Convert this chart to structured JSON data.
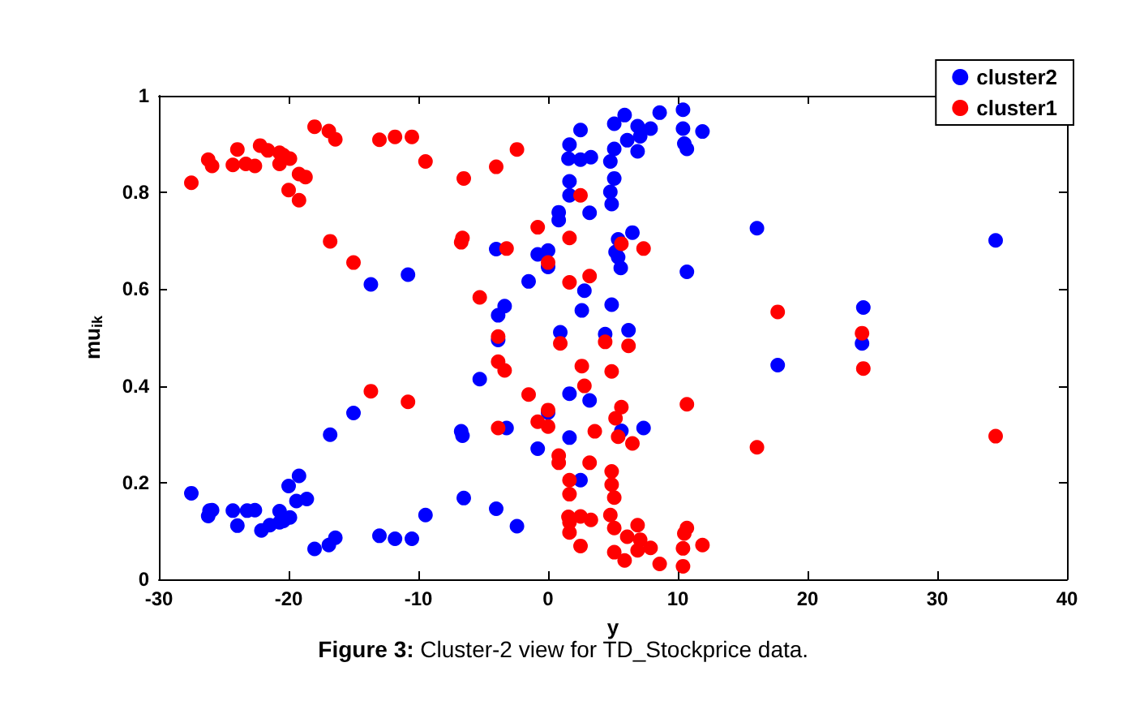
{
  "chart_data": {
    "type": "scatter",
    "xlabel": "y",
    "ylabel": "mu$_{ik}$",
    "annotations": [
      "Figure 3: Cluster-2 view for TD_Stockprice data."
    ],
    "xlim": [
      -30,
      40
    ],
    "xticks": [
      -30,
      -20,
      -10,
      0,
      10,
      20,
      30,
      40
    ],
    "ylim": [
      0,
      1
    ],
    "yticks": [
      0,
      0.2,
      0.4,
      0.6,
      0.8,
      1
    ],
    "grid": false,
    "legend": "top right",
    "marker": "circle",
    "series": [
      {
        "name": "cluster2",
        "color": "#0000ff",
        "x": [
          -27.5,
          -26.1,
          -26.2,
          -25.9,
          -24.3,
          -23.95,
          -23.2,
          -22.6,
          -22.1,
          -21.45,
          -20.7,
          -20.4,
          -19.9,
          -20.7,
          -20.0,
          -19.2,
          -19.4,
          -18.6,
          -18.0,
          -16.9,
          -16.4,
          -13.0,
          -11.8,
          -10.5,
          -9.45,
          -6.5,
          -16.8,
          -15.0,
          -6.7,
          -6.6,
          -13.66,
          -10.8,
          -5.27,
          -4.0,
          -2.4,
          -4.0,
          -3.85,
          -3.85,
          -3.35,
          -1.5,
          -0.8,
          0.0,
          0.0,
          -3.2,
          -0.8,
          0.0,
          1.65,
          3.2,
          1.65,
          5.65,
          7.36,
          2.5,
          0.94,
          4.4,
          6.2,
          2.6,
          4.9,
          2.8,
          0.82,
          0.82,
          3.2,
          1.65,
          1.65,
          4.8,
          5.1,
          4.9,
          1.57,
          1.65,
          2.5,
          3.3,
          2.5,
          4.8,
          5.1,
          6.1,
          6.9,
          7.1,
          6.9,
          7.9,
          5.1,
          5.9,
          8.6,
          10.4,
          10.4,
          10.5,
          10.7,
          11.9,
          10.7,
          5.4,
          5.2,
          5.6,
          5.4,
          6.5,
          16.1,
          17.7,
          24.3,
          24.2,
          34.5
        ],
        "values": [
          0.178,
          0.142,
          0.131,
          0.143,
          0.142,
          0.111,
          0.142,
          0.143,
          0.101,
          0.112,
          0.118,
          0.121,
          0.128,
          0.141,
          0.193,
          0.214,
          0.162,
          0.166,
          0.063,
          0.071,
          0.086,
          0.09,
          0.084,
          0.084,
          0.133,
          0.168,
          0.299,
          0.344,
          0.306,
          0.297,
          0.61,
          0.63,
          0.414,
          0.146,
          0.11,
          0.683,
          0.495,
          0.546,
          0.565,
          0.616,
          0.672,
          0.68,
          0.646,
          0.313,
          0.27,
          0.345,
          0.384,
          0.37,
          0.293,
          0.307,
          0.313,
          0.205,
          0.511,
          0.507,
          0.515,
          0.556,
          0.568,
          0.597,
          0.759,
          0.743,
          0.758,
          0.794,
          0.823,
          0.801,
          0.829,
          0.776,
          0.87,
          0.899,
          0.868,
          0.873,
          0.929,
          0.864,
          0.89,
          0.908,
          0.885,
          0.916,
          0.937,
          0.932,
          0.942,
          0.96,
          0.965,
          0.971,
          0.932,
          0.901,
          0.89,
          0.926,
          0.636,
          0.666,
          0.677,
          0.644,
          0.703,
          0.717,
          0.726,
          0.443,
          0.562,
          0.488,
          0.701
        ]
      },
      {
        "name": "cluster1",
        "color": "#ff0000",
        "x": [
          -27.5,
          -26.2,
          -25.9,
          -23.95,
          -24.3,
          -23.3,
          -22.6,
          -22.2,
          -21.6,
          -20.7,
          -20.4,
          -19.9,
          -20.7,
          -19.2,
          -18.7,
          -20.0,
          -19.2,
          -18.0,
          -16.9,
          -16.4,
          -13.0,
          -11.8,
          -10.5,
          -9.45,
          -6.5,
          -16.8,
          -15.0,
          -6.7,
          -6.6,
          -5.27,
          -13.66,
          -10.8,
          -4.0,
          -2.4,
          -3.2,
          -0.8,
          0.0,
          2.5,
          1.65,
          5.65,
          7.36,
          1.65,
          3.2,
          -3.85,
          -3.85,
          -3.35,
          0.94,
          4.4,
          6.2,
          2.6,
          4.9,
          2.8,
          -1.5,
          0.0,
          -0.8,
          0.0,
          -3.85,
          3.6,
          5.65,
          5.2,
          5.4,
          6.5,
          10.7,
          16.1,
          0.82,
          0.82,
          3.2,
          1.65,
          1.65,
          4.9,
          4.9,
          5.1,
          1.57,
          1.65,
          2.5,
          3.3,
          1.65,
          2.5,
          4.8,
          5.1,
          6.1,
          6.9,
          7.1,
          6.9,
          7.9,
          5.1,
          5.9,
          8.6,
          10.4,
          10.4,
          10.5,
          10.7,
          11.9,
          17.7,
          24.2,
          24.3,
          34.5
        ],
        "values": [
          0.82,
          0.868,
          0.855,
          0.889,
          0.857,
          0.859,
          0.855,
          0.897,
          0.887,
          0.882,
          0.877,
          0.87,
          0.859,
          0.838,
          0.832,
          0.805,
          0.784,
          0.936,
          0.927,
          0.91,
          0.909,
          0.915,
          0.915,
          0.864,
          0.829,
          0.699,
          0.655,
          0.697,
          0.706,
          0.583,
          0.389,
          0.367,
          0.853,
          0.889,
          0.684,
          0.728,
          0.655,
          0.794,
          0.706,
          0.694,
          0.684,
          0.614,
          0.627,
          0.502,
          0.45,
          0.432,
          0.488,
          0.491,
          0.483,
          0.441,
          0.43,
          0.4,
          0.382,
          0.35,
          0.326,
          0.316,
          0.313,
          0.306,
          0.356,
          0.333,
          0.295,
          0.281,
          0.362,
          0.273,
          0.256,
          0.241,
          0.241,
          0.205,
          0.176,
          0.223,
          0.196,
          0.169,
          0.129,
          0.118,
          0.13,
          0.123,
          0.097,
          0.069,
          0.133,
          0.106,
          0.088,
          0.112,
          0.082,
          0.06,
          0.065,
          0.056,
          0.039,
          0.032,
          0.027,
          0.064,
          0.095,
          0.106,
          0.071,
          0.553,
          0.509,
          0.436,
          0.296
        ]
      }
    ]
  }
}
